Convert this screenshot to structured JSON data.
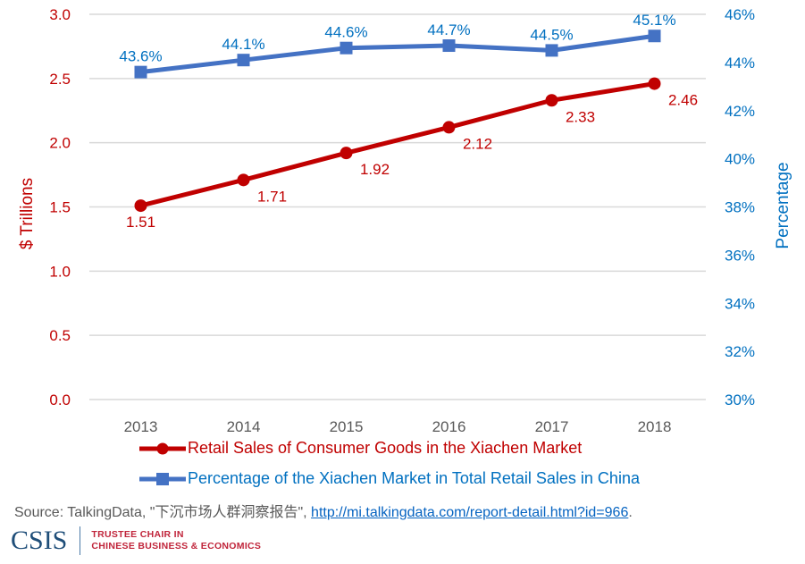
{
  "chart_data": {
    "type": "line",
    "title": "",
    "categories": [
      "2013",
      "2014",
      "2015",
      "2016",
      "2017",
      "2018"
    ],
    "series": [
      {
        "name": "Retail Sales of Consumer Goods in the Xiachen Market",
        "axis": "left",
        "color": "#c00000",
        "marker": "circle",
        "values": [
          1.51,
          1.71,
          1.92,
          2.12,
          2.33,
          2.46
        ],
        "labels": [
          "1.51",
          "1.71",
          "1.92",
          "2.12",
          "2.33",
          "2.46"
        ]
      },
      {
        "name": "Percentage of the Xiachen Market in Total Retail Sales in China",
        "axis": "right",
        "color": "#4472c4",
        "label_color": "#0070c0",
        "marker": "square",
        "values": [
          43.6,
          44.1,
          44.6,
          44.7,
          44.5,
          45.1
        ],
        "labels": [
          "43.6%",
          "44.1%",
          "44.6%",
          "44.7%",
          "44.5%",
          "45.1%"
        ]
      }
    ],
    "ylabel": "$ Trillions",
    "ylim": [
      0,
      3.0
    ],
    "yticks": [
      "0.0",
      "0.5",
      "1.0",
      "1.5",
      "2.0",
      "2.5",
      "3.0"
    ],
    "y2label": "Percentage",
    "y2lim": [
      30,
      46
    ],
    "y2ticks": [
      "30%",
      "32%",
      "34%",
      "36%",
      "38%",
      "40%",
      "42%",
      "44%",
      "46%"
    ],
    "xlabel": "",
    "grid": true,
    "legend_position": "bottom"
  },
  "source": {
    "prefix": "Source: TalkingData, \"下沉市场人群洞察报告\", ",
    "link_text": "http://mi.talkingdata.com/report-detail.html?id=966",
    "suffix": "."
  },
  "logo": {
    "mark": "CSIS",
    "line1": "TRUSTEE CHAIR IN",
    "line2": "CHINESE BUSINESS & ECONOMICS"
  }
}
